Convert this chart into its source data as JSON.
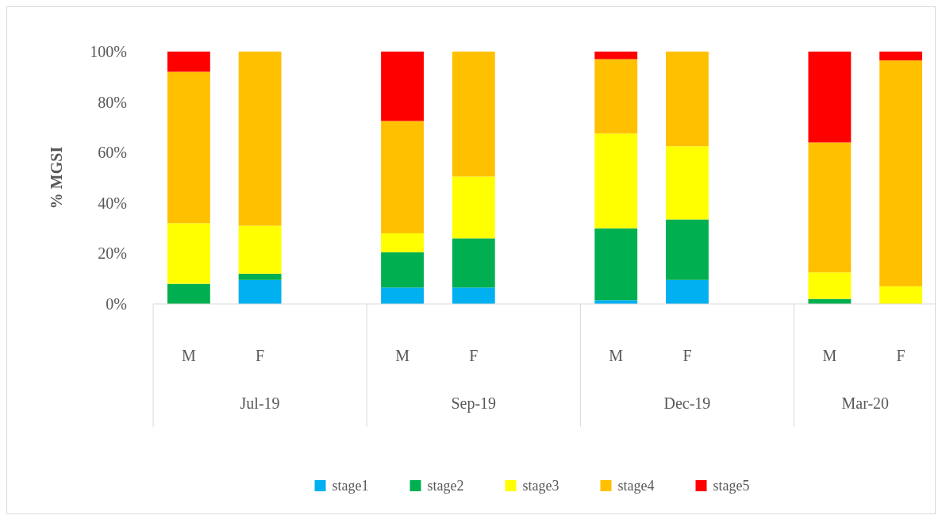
{
  "chart_data": {
    "type": "bar",
    "stacked": true,
    "ylabel": "% MGSI",
    "categories": [
      "M",
      "F",
      null,
      "M",
      "F",
      null,
      "M",
      "F",
      null,
      "M",
      "F"
    ],
    "annotations": [
      "Jul-19",
      "Sep-19",
      "Dec-19",
      "Mar-20"
    ],
    "series": [
      {
        "name": "stage1",
        "color": "#00b0f0",
        "values": [
          0,
          9.5,
          null,
          6.5,
          6.5,
          null,
          1.5,
          9.5,
          null,
          0,
          0
        ]
      },
      {
        "name": "stage2",
        "color": "#00b050",
        "values": [
          8,
          2.5,
          null,
          14,
          19.5,
          null,
          28.5,
          24,
          null,
          2,
          0
        ]
      },
      {
        "name": "stage3",
        "color": "#ffff00",
        "values": [
          24,
          19,
          null,
          7.5,
          24.5,
          null,
          37.5,
          29,
          null,
          10.5,
          7
        ]
      },
      {
        "name": "stage4",
        "color": "#ffc000",
        "values": [
          60,
          69,
          null,
          44.5,
          49.5,
          null,
          29.5,
          37.5,
          null,
          51.5,
          89.5
        ]
      },
      {
        "name": "stage5",
        "color": "#ff0000",
        "values": [
          8,
          0,
          null,
          27.5,
          0,
          null,
          3,
          0,
          null,
          36,
          3.5
        ]
      }
    ],
    "ylim": [
      0,
      100
    ],
    "yticks": [
      {
        "value": 0,
        "label": "0%"
      },
      {
        "value": 20,
        "label": "20%"
      },
      {
        "value": 40,
        "label": "40%"
      },
      {
        "value": 60,
        "label": "60%"
      },
      {
        "value": 80,
        "label": "80%"
      },
      {
        "value": 100,
        "label": "100%"
      }
    ],
    "legend": "bottom"
  }
}
